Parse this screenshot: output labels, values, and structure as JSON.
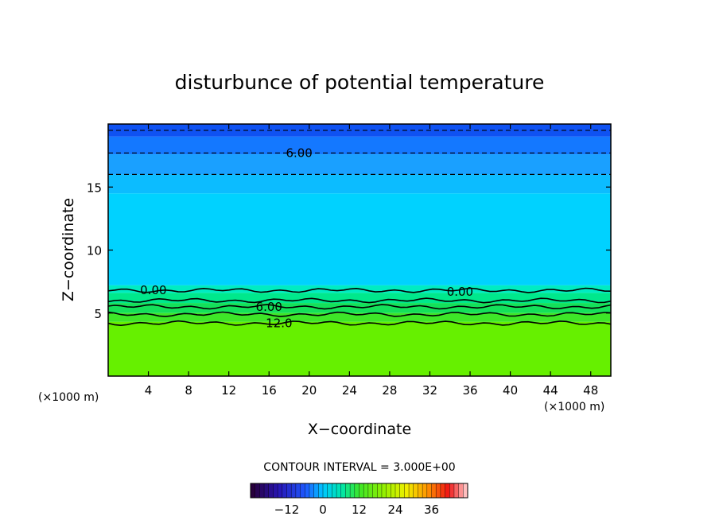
{
  "chart_data": {
    "type": "heatmap",
    "title": "disturbunce of potential temperature",
    "xlabel": "X−coordinate",
    "ylabel": "Z−coordinate",
    "x_unit_left": "(×1000 m)",
    "x_unit_right": "(×1000 m)",
    "xlim": [
      0,
      50
    ],
    "ylim": [
      0,
      20
    ],
    "xticks": [
      4,
      8,
      12,
      16,
      20,
      24,
      28,
      32,
      36,
      40,
      44,
      48
    ],
    "yticks": [
      5,
      10,
      15
    ],
    "contour_interval_text": "CONTOUR INTERVAL = 3.000E+00",
    "contour_labels": [
      {
        "text": "6.00",
        "x": 19,
        "z": 17.7
      },
      {
        "text": "0.00",
        "x": 4.5,
        "z": 6.8
      },
      {
        "text": "0.00",
        "x": 35,
        "z": 6.7
      },
      {
        "text": "6.00",
        "x": 16,
        "z": 5.5
      },
      {
        "text": "12.0",
        "x": 17,
        "z": 4.2
      }
    ],
    "bands": [
      {
        "zmin": 19.0,
        "zmax": 20.0,
        "value": -9,
        "color": "#0f52f2"
      },
      {
        "zmin": 17.6,
        "zmax": 19.0,
        "value": -6,
        "color": "#1478ff"
      },
      {
        "zmin": 16.0,
        "zmax": 17.6,
        "value": -3,
        "color": "#1aa0ff"
      },
      {
        "zmin": 14.5,
        "zmax": 16.0,
        "value": -1.5,
        "color": "#0cbcff"
      },
      {
        "zmin": 7.2,
        "zmax": 14.5,
        "value": 0,
        "color": "#00d2ff"
      },
      {
        "zmin": 6.6,
        "zmax": 7.2,
        "value": 1.5,
        "color": "#00ecc2"
      },
      {
        "zmin": 5.8,
        "zmax": 6.6,
        "value": 4.5,
        "color": "#00e88c"
      },
      {
        "zmin": 5.0,
        "zmax": 5.8,
        "value": 7.5,
        "color": "#14e05a"
      },
      {
        "zmin": 4.3,
        "zmax": 5.0,
        "value": 10.5,
        "color": "#3ee628"
      },
      {
        "zmin": 0.0,
        "zmax": 4.3,
        "value": 13.5,
        "color": "#66f000"
      }
    ],
    "contour_levels": [
      {
        "z": 19.5,
        "style": "dashed"
      },
      {
        "z": 17.7,
        "style": "dashed",
        "label": "6.00"
      },
      {
        "z": 16.0,
        "style": "dashed"
      },
      {
        "z": 6.8,
        "style": "solid",
        "label": "0.00"
      },
      {
        "z": 6.0,
        "style": "solid"
      },
      {
        "z": 5.5,
        "style": "solid",
        "label": "6.00"
      },
      {
        "z": 4.9,
        "style": "solid"
      },
      {
        "z": 4.2,
        "style": "solid",
        "label": "12.0"
      }
    ],
    "colorbar": {
      "ticks": [
        "−12",
        "0",
        "12",
        "24",
        "36"
      ],
      "tick_values": [
        -12,
        0,
        12,
        24,
        36
      ],
      "range": [
        -24,
        48
      ]
    }
  }
}
